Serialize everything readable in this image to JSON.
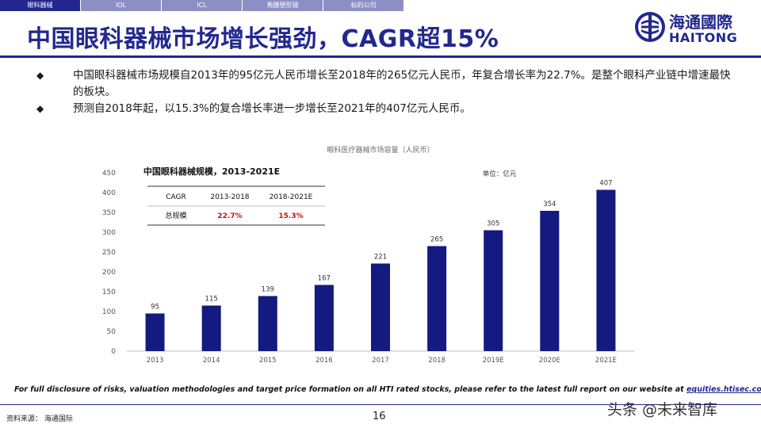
{
  "nav": {
    "tabs": [
      {
        "label": "眼科器械",
        "active": true
      },
      {
        "label": "IOL",
        "active": false
      },
      {
        "label": "ICL",
        "active": false
      },
      {
        "label": "角膜塑形镜",
        "active": false
      },
      {
        "label": "标的公司",
        "active": false
      }
    ]
  },
  "title": "中国眼科器械市场增长强劲，CAGR超15%",
  "logo": {
    "cn": "海通國際",
    "en": "HAITONG",
    "icon": "haitong-logo-icon"
  },
  "bullets": [
    {
      "marker": "◆",
      "text": "中国眼科器械市场规模自2013年的95亿元人民币增长至2018年的265亿元人民币，年复合增长率为22.7%。是整个眼科产业链中增速最快的板块。"
    },
    {
      "marker": "◆",
      "text": "预测自2018年起，以15.3%的复合增长率进一步增长至2021年的407亿元人民币。"
    }
  ],
  "chart_data": {
    "type": "bar",
    "title": "眼科医疗器械市场容量（人民币）",
    "subtitle": "中国眼科器械规模，2013-2021E",
    "unit_label": "单位：亿元",
    "categories": [
      "2013",
      "2014",
      "2015",
      "2016",
      "2017",
      "2018",
      "2019E",
      "2020E",
      "2021E"
    ],
    "values": [
      95,
      115,
      139,
      167,
      221,
      265,
      305,
      354,
      407
    ],
    "value_labels": [
      "95",
      "115",
      "139",
      "167",
      "221",
      "265",
      "305",
      "354",
      "407"
    ],
    "y_ticks": [
      "0",
      "50",
      "100",
      "150",
      "200",
      "250",
      "300",
      "350",
      "400",
      "450"
    ],
    "ylim": [
      0,
      450
    ],
    "bar_color": "#141a80",
    "grid": false,
    "inset_table": {
      "headers": [
        "CAGR",
        "2013-2018",
        "2018-2021E"
      ],
      "row_label": "总规模",
      "values": [
        "22.7%",
        "15.3%"
      ],
      "value_color": "#d01010"
    }
  },
  "footer": {
    "disclosure": "For full disclosure of risks, valuation methodologies and target price formation on all HTI rated stocks, please refer to the latest full report on our website at ",
    "link": "equities.htisec.com",
    "source": "资料来源： 海通国际",
    "page": "16",
    "watermark": "头条 @未来智库"
  },
  "colors": {
    "brand": "#22288e",
    "nav_inactive": "#8d8fc4"
  }
}
